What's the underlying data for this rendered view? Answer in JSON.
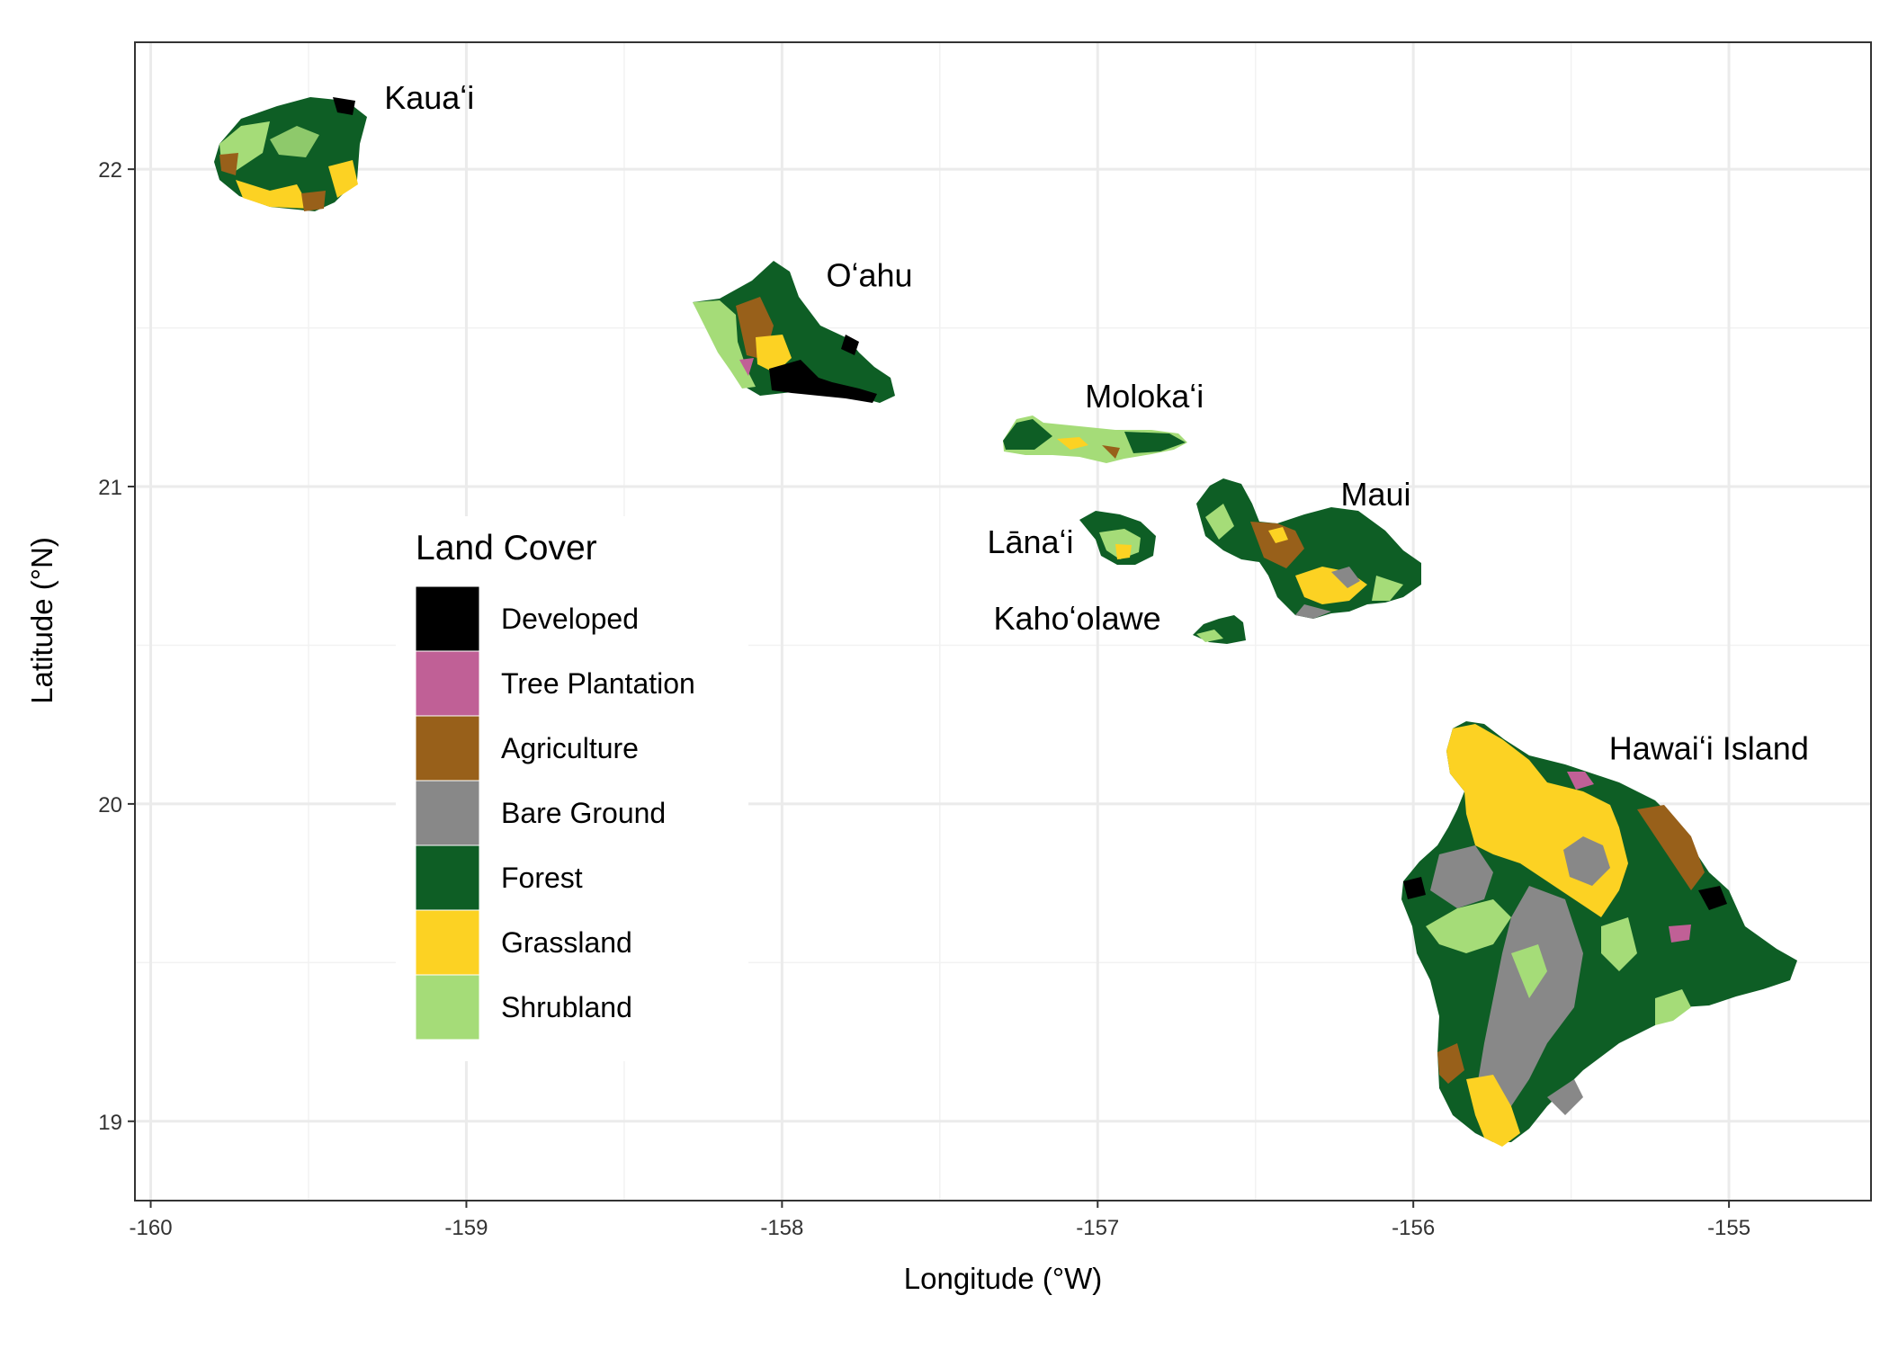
{
  "chart_data": {
    "type": "map",
    "x_label": "Longitude (°W)",
    "y_label": "Latitude (°N)",
    "xlim": [
      -160.05,
      -154.55
    ],
    "ylim": [
      18.75,
      22.4
    ],
    "x_ticks": [
      {
        "value": -160,
        "label": "-160"
      },
      {
        "value": -159,
        "label": "-159"
      },
      {
        "value": -158,
        "label": "-158"
      },
      {
        "value": -157,
        "label": "-157"
      },
      {
        "value": -156,
        "label": "-156"
      },
      {
        "value": -155,
        "label": "-155"
      }
    ],
    "y_ticks": [
      {
        "value": 19,
        "label": "19"
      },
      {
        "value": 20,
        "label": "20"
      },
      {
        "value": 21,
        "label": "21"
      },
      {
        "value": 22,
        "label": "22"
      }
    ],
    "grid": true,
    "legend": {
      "title": "Land Cover",
      "placement": "center-left",
      "items": [
        {
          "label": "Developed",
          "color": "#000000"
        },
        {
          "label": "Tree Plantation",
          "color": "#c06096"
        },
        {
          "label": "Agriculture",
          "color": "#98601a"
        },
        {
          "label": "Bare Ground",
          "color": "#888888"
        },
        {
          "label": "Forest",
          "color": "#0e5e25"
        },
        {
          "label": "Grassland",
          "color": "#fcd223"
        },
        {
          "label": "Shrubland",
          "color": "#a5dc78"
        }
      ]
    },
    "islands": [
      {
        "name": "Kauaʻi",
        "lon": -159.53,
        "lat": 22.06,
        "label_lon": -159.26,
        "label_lat": 22.19
      },
      {
        "name": "Oʻahu",
        "lon": -158.0,
        "lat": 21.47,
        "label_lon": -157.86,
        "label_lat": 21.63
      },
      {
        "name": "Molokaʻi",
        "lon": -157.0,
        "lat": 21.14,
        "label_lon": -157.04,
        "label_lat": 21.25
      },
      {
        "name": "Maui",
        "lon": -156.3,
        "lat": 20.8,
        "label_lon": -156.23,
        "label_lat": 20.94
      },
      {
        "name": "Lānaʻi",
        "lon": -156.93,
        "lat": 20.83,
        "label_lon": -157.35,
        "label_lat": 20.79
      },
      {
        "name": "Kahoʻolawe",
        "lon": -156.6,
        "lat": 20.55,
        "label_lon": -157.33,
        "label_lat": 20.55
      },
      {
        "name": "Hawaiʻi Island",
        "lon": -155.52,
        "lat": 19.6,
        "label_lon": -155.38,
        "label_lat": 20.14
      }
    ]
  }
}
